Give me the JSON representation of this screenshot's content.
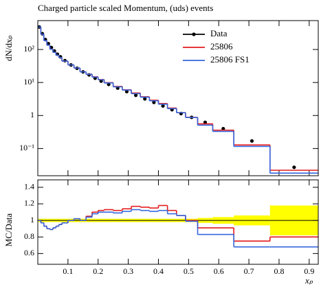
{
  "chart_data": [
    {
      "type": "histogram",
      "title": "Charged particle scaled Momentum, (uds) events",
      "ylabel": "dN/dxₚ",
      "bins": [
        0,
        0.01,
        0.02,
        0.03,
        0.04,
        0.05,
        0.06,
        0.07,
        0.08,
        0.1,
        0.12,
        0.14,
        0.16,
        0.18,
        0.2,
        0.22,
        0.25,
        0.28,
        0.31,
        0.34,
        0.37,
        0.4,
        0.43,
        0.46,
        0.49,
        0.53,
        0.58,
        0.65,
        0.77,
        0.93
      ],
      "series": [
        {
          "name": "Data",
          "color": "#000000",
          "style": "points",
          "values": [
            480,
            300,
            200,
            150,
            115,
            90,
            72,
            60,
            46,
            34,
            27,
            21,
            17,
            13.5,
            11,
            8.8,
            6.8,
            5.3,
            4.1,
            3.2,
            2.5,
            1.95,
            1.5,
            1.15,
            0.88,
            0.62,
            0.4,
            0.17,
            0.027
          ]
        },
        {
          "name": "25806",
          "color": "#e41a1c",
          "style": "step",
          "values": [
            480,
            291,
            186,
            135,
            102,
            82,
            67,
            57,
            44.6,
            34,
            27.5,
            21,
            17.9,
            14.9,
            12.3,
            9.9,
            7.6,
            6.0,
            4.8,
            3.7,
            2.9,
            2.3,
            1.68,
            1.22,
            0.88,
            0.56,
            0.36,
            0.128,
            0.022
          ]
        },
        {
          "name": "25806 FS1",
          "color": "#3366dd",
          "style": "step",
          "values": [
            480,
            291,
            186,
            135,
            102,
            82,
            67,
            57,
            44.6,
            34,
            27.5,
            21,
            17.7,
            14.6,
            12.1,
            9.7,
            7.4,
            5.9,
            4.6,
            3.6,
            2.8,
            2.2,
            1.62,
            1.22,
            0.87,
            0.51,
            0.33,
            0.116,
            0.018
          ]
        }
      ],
      "log_scale": true,
      "xlim": [
        0,
        0.93
      ],
      "ylim": [
        0.015,
        750
      ],
      "yticks": [
        {
          "value": 0.1,
          "label": "10⁻¹"
        },
        1,
        {
          "value": 10,
          "label": "10¹"
        },
        {
          "value": 100,
          "label": "10²"
        }
      ],
      "legend": "upper right"
    },
    {
      "type": "histogram",
      "ylabel": "MC/Data",
      "xlabel": "xₚ",
      "series": [
        {
          "color": "#e41a1c",
          "values": [
            1.0,
            0.97,
            0.93,
            0.9,
            0.89,
            0.91,
            0.93,
            0.95,
            0.97,
            1.0,
            1.02,
            1.0,
            1.05,
            1.1,
            1.12,
            1.13,
            1.12,
            1.14,
            1.17,
            1.16,
            1.15,
            1.18,
            1.12,
            1.06,
            1.0,
            0.91,
            0.91,
            0.75,
            0.8
          ]
        },
        {
          "color": "#3366dd",
          "values": [
            1.0,
            0.97,
            0.93,
            0.9,
            0.89,
            0.91,
            0.93,
            0.95,
            0.97,
            1.0,
            1.02,
            1.0,
            1.04,
            1.08,
            1.1,
            1.1,
            1.09,
            1.11,
            1.13,
            1.12,
            1.11,
            1.12,
            1.08,
            1.06,
            0.99,
            0.83,
            0.83,
            0.68,
            0.68
          ]
        }
      ],
      "uncertainty": [
        0.02,
        0.02,
        0.02,
        0.02,
        0.02,
        0.02,
        0.02,
        0.02,
        0.02,
        0.02,
        0.02,
        0.02,
        0.02,
        0.02,
        0.02,
        0.02,
        0.02,
        0.02,
        0.02,
        0.02,
        0.02,
        0.02,
        0.02,
        0.02,
        0.02,
        0.03,
        0.04,
        0.06,
        0.18
      ],
      "band_color": "#ffff00",
      "reference_line": 1,
      "xlim": [
        0,
        0.93
      ],
      "xticks": [
        0.1,
        0.2,
        0.3,
        0.4,
        0.5,
        0.6,
        0.7,
        0.8,
        0.9
      ],
      "ylim": [
        0.47,
        1.49
      ],
      "yticks": [
        0.6,
        0.8,
        1,
        1.2,
        1.4
      ]
    }
  ]
}
